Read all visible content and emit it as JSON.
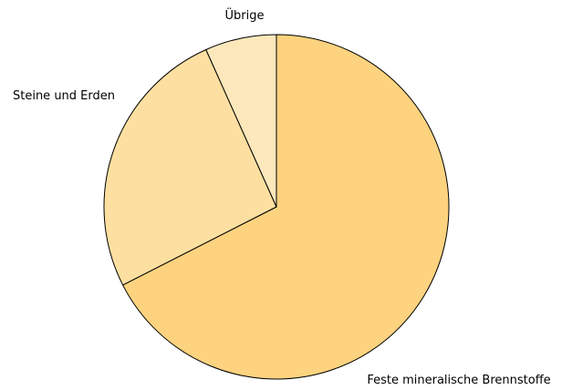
{
  "chart_data": {
    "type": "pie",
    "title": "",
    "slices": [
      {
        "label": "Feste mineralische Brennstoffe",
        "value": 67.5,
        "color": "#fdd37f"
      },
      {
        "label": "Steine und Erden",
        "value": 25.8,
        "color": "#fde0a1"
      },
      {
        "label": "Übrige",
        "value": 6.7,
        "color": "#fde8bc"
      }
    ],
    "start": "top",
    "direction": "clockwise",
    "legend": "none"
  }
}
